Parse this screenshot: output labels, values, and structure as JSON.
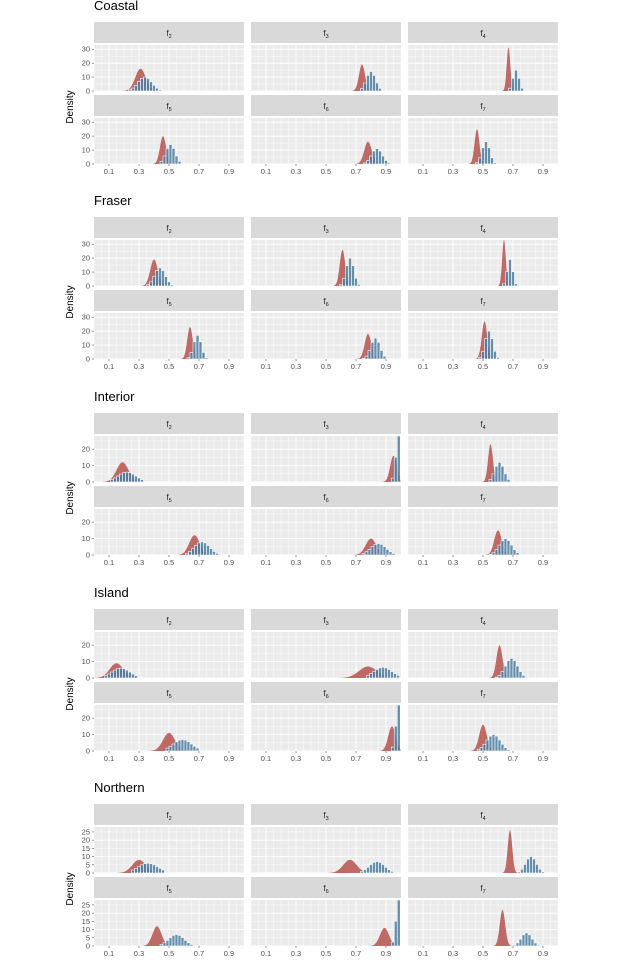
{
  "figure": {
    "y_axis_label": "Density",
    "x_ticks": [
      "0.1",
      "0.3",
      "0.5",
      "0.7",
      "0.9"
    ],
    "x_range": [
      0.0,
      1.0
    ],
    "colors": {
      "prior_density": "#b5524e",
      "posterior_bars": "#4e7ea1",
      "panel_background": "#ebebeb",
      "strip_background": "#d9d9d9",
      "grid": "#ffffff"
    }
  },
  "chart_data": [
    {
      "type": "area",
      "title": "Coastal",
      "ylabel": "Density",
      "ylim": [
        0,
        33
      ],
      "yticks": [
        "0",
        "10",
        "20",
        "30"
      ],
      "panels": [
        {
          "label": "f",
          "sub": "2",
          "density_peak_x": 0.31,
          "density_peak_y": 16,
          "density_sd": 0.035,
          "bars_center": 0.34,
          "bars_sd": 0.045,
          "bars_peak": 10
        },
        {
          "label": "f",
          "sub": "3",
          "density_peak_x": 0.74,
          "density_peak_y": 19,
          "density_sd": 0.02,
          "bars_center": 0.8,
          "bars_sd": 0.03,
          "bars_peak": 14
        },
        {
          "label": "f",
          "sub": "4",
          "density_peak_x": 0.67,
          "density_peak_y": 31,
          "density_sd": 0.012,
          "bars_center": 0.72,
          "bars_sd": 0.02,
          "bars_peak": 15
        },
        {
          "label": "f",
          "sub": "5",
          "density_peak_x": 0.46,
          "density_peak_y": 20,
          "density_sd": 0.02,
          "bars_center": 0.51,
          "bars_sd": 0.03,
          "bars_peak": 14
        },
        {
          "label": "f",
          "sub": "6",
          "density_peak_x": 0.78,
          "density_peak_y": 16,
          "density_sd": 0.025,
          "bars_center": 0.84,
          "bars_sd": 0.035,
          "bars_peak": 11
        },
        {
          "label": "f",
          "sub": "7",
          "density_peak_x": 0.46,
          "density_peak_y": 25,
          "density_sd": 0.016,
          "bars_center": 0.52,
          "bars_sd": 0.025,
          "bars_peak": 16
        }
      ]
    },
    {
      "type": "area",
      "title": "Fraser",
      "ylabel": "Density",
      "ylim": [
        0,
        33
      ],
      "yticks": [
        "0",
        "10",
        "20",
        "30"
      ],
      "panels": [
        {
          "label": "f",
          "sub": "2",
          "density_peak_x": 0.4,
          "density_peak_y": 19,
          "density_sd": 0.025,
          "bars_center": 0.44,
          "bars_sd": 0.035,
          "bars_peak": 13
        },
        {
          "label": "f",
          "sub": "3",
          "density_peak_x": 0.61,
          "density_peak_y": 26,
          "density_sd": 0.018,
          "bars_center": 0.66,
          "bars_sd": 0.025,
          "bars_peak": 20
        },
        {
          "label": "f",
          "sub": "4",
          "density_peak_x": 0.64,
          "density_peak_y": 33,
          "density_sd": 0.012,
          "bars_center": 0.68,
          "bars_sd": 0.018,
          "bars_peak": 19
        },
        {
          "label": "f",
          "sub": "5",
          "density_peak_x": 0.64,
          "density_peak_y": 23,
          "density_sd": 0.018,
          "bars_center": 0.69,
          "bars_sd": 0.025,
          "bars_peak": 17
        },
        {
          "label": "f",
          "sub": "6",
          "density_peak_x": 0.78,
          "density_peak_y": 18,
          "density_sd": 0.022,
          "bars_center": 0.83,
          "bars_sd": 0.03,
          "bars_peak": 15
        },
        {
          "label": "f",
          "sub": "7",
          "density_peak_x": 0.51,
          "density_peak_y": 27,
          "density_sd": 0.018,
          "bars_center": 0.54,
          "bars_sd": 0.025,
          "bars_peak": 20
        }
      ]
    },
    {
      "type": "area",
      "title": "Interior",
      "ylabel": "Density",
      "ylim": [
        0,
        28
      ],
      "yticks": [
        "0",
        "10",
        "20"
      ],
      "panels": [
        {
          "label": "f",
          "sub": "2",
          "density_peak_x": 0.19,
          "density_peak_y": 12,
          "density_sd": 0.04,
          "bars_center": 0.22,
          "bars_sd": 0.06,
          "bars_peak": 6
        },
        {
          "label": "f",
          "sub": "3",
          "density_peak_x": 0.95,
          "density_peak_y": 16,
          "density_sd": 0.022,
          "bars_center": 0.985,
          "bars_sd": 0.018,
          "bars_peak": 28
        },
        {
          "label": "f",
          "sub": "4",
          "density_peak_x": 0.55,
          "density_peak_y": 23,
          "density_sd": 0.016,
          "bars_center": 0.61,
          "bars_sd": 0.03,
          "bars_peak": 12
        },
        {
          "label": "f",
          "sub": "5",
          "density_peak_x": 0.67,
          "density_peak_y": 12,
          "density_sd": 0.035,
          "bars_center": 0.72,
          "bars_sd": 0.05,
          "bars_peak": 8
        },
        {
          "label": "f",
          "sub": "6",
          "density_peak_x": 0.8,
          "density_peak_y": 10,
          "density_sd": 0.035,
          "bars_center": 0.85,
          "bars_sd": 0.05,
          "bars_peak": 7
        },
        {
          "label": "f",
          "sub": "7",
          "density_peak_x": 0.6,
          "density_peak_y": 15,
          "density_sd": 0.025,
          "bars_center": 0.65,
          "bars_sd": 0.04,
          "bars_peak": 10
        }
      ]
    },
    {
      "type": "area",
      "title": "Island",
      "ylabel": "Density",
      "ylim": [
        0,
        28
      ],
      "yticks": [
        "0",
        "10",
        "20"
      ],
      "panels": [
        {
          "label": "f",
          "sub": "2",
          "density_peak_x": 0.15,
          "density_peak_y": 9,
          "density_sd": 0.045,
          "bars_center": 0.18,
          "bars_sd": 0.06,
          "bars_peak": 6
        },
        {
          "label": "f",
          "sub": "3",
          "density_peak_x": 0.78,
          "density_peak_y": 7,
          "density_sd": 0.06,
          "bars_center": 0.88,
          "bars_sd": 0.06,
          "bars_peak": 6.5
        },
        {
          "label": "f",
          "sub": "4",
          "density_peak_x": 0.61,
          "density_peak_y": 20,
          "density_sd": 0.02,
          "bars_center": 0.69,
          "bars_sd": 0.04,
          "bars_peak": 12
        },
        {
          "label": "f",
          "sub": "5",
          "density_peak_x": 0.5,
          "density_peak_y": 11,
          "density_sd": 0.04,
          "bars_center": 0.59,
          "bars_sd": 0.06,
          "bars_peak": 7
        },
        {
          "label": "f",
          "sub": "6",
          "density_peak_x": 0.94,
          "density_peak_y": 15,
          "density_sd": 0.025,
          "bars_center": 0.985,
          "bars_sd": 0.018,
          "bars_peak": 28
        },
        {
          "label": "f",
          "sub": "7",
          "density_peak_x": 0.5,
          "density_peak_y": 16,
          "density_sd": 0.025,
          "bars_center": 0.57,
          "bars_sd": 0.045,
          "bars_peak": 10
        }
      ]
    },
    {
      "type": "area",
      "title": "Northern",
      "ylabel": "Density",
      "ylim": [
        0,
        28
      ],
      "yticks": [
        "0",
        "5",
        "10",
        "15",
        "20",
        "25"
      ],
      "panels": [
        {
          "label": "f",
          "sub": "2",
          "density_peak_x": 0.3,
          "density_peak_y": 8,
          "density_sd": 0.045,
          "bars_center": 0.36,
          "bars_sd": 0.065,
          "bars_peak": 6
        },
        {
          "label": "f",
          "sub": "3",
          "density_peak_x": 0.66,
          "density_peak_y": 8,
          "density_sd": 0.045,
          "bars_center": 0.84,
          "bars_sd": 0.05,
          "bars_peak": 7
        },
        {
          "label": "f",
          "sub": "4",
          "density_peak_x": 0.68,
          "density_peak_y": 26,
          "density_sd": 0.015,
          "bars_center": 0.82,
          "bars_sd": 0.035,
          "bars_peak": 10
        },
        {
          "label": "f",
          "sub": "5",
          "density_peak_x": 0.42,
          "density_peak_y": 12,
          "density_sd": 0.03,
          "bars_center": 0.55,
          "bars_sd": 0.05,
          "bars_peak": 7
        },
        {
          "label": "f",
          "sub": "6",
          "density_peak_x": 0.89,
          "density_peak_y": 11,
          "density_sd": 0.03,
          "bars_center": 0.985,
          "bars_sd": 0.018,
          "bars_peak": 28
        },
        {
          "label": "f",
          "sub": "7",
          "density_peak_x": 0.63,
          "density_peak_y": 22,
          "density_sd": 0.018,
          "bars_center": 0.79,
          "bars_sd": 0.035,
          "bars_peak": 8
        }
      ]
    }
  ]
}
